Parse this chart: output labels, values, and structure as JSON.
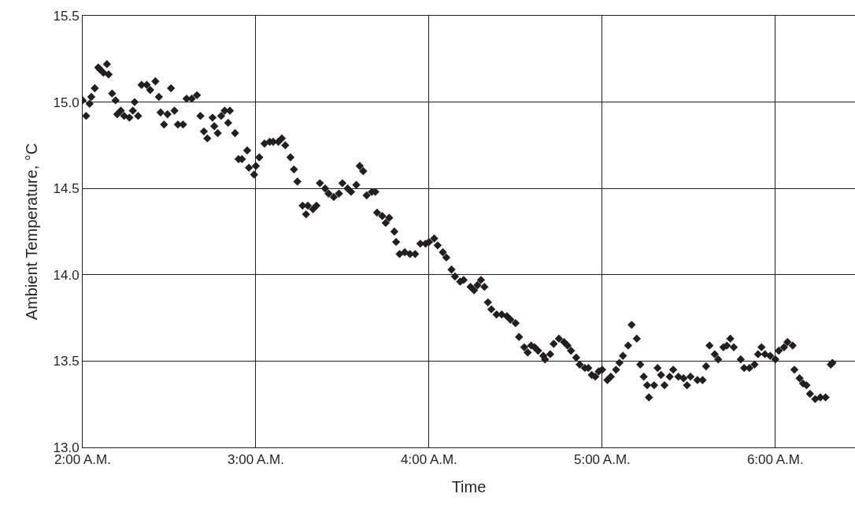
{
  "chart_data": {
    "type": "scatter",
    "xlabel": "Time",
    "ylabel": "Ambient Temperature, °C",
    "x": [
      2.0,
      2.02,
      2.04,
      2.05,
      2.07,
      2.09,
      2.1,
      2.12,
      2.14,
      2.15,
      2.17,
      2.19,
      2.2,
      2.22,
      2.24,
      2.27,
      2.29,
      2.3,
      2.32,
      2.34,
      2.37,
      2.39,
      2.42,
      2.44,
      2.45,
      2.47,
      2.49,
      2.51,
      2.53,
      2.55,
      2.58,
      2.6,
      2.63,
      2.66,
      2.68,
      2.7,
      2.72,
      2.75,
      2.76,
      2.78,
      2.8,
      2.82,
      2.84,
      2.85,
      2.88,
      2.9,
      2.92,
      2.95,
      2.96,
      2.99,
      3.0,
      3.02,
      3.05,
      3.08,
      3.1,
      3.13,
      3.15,
      3.17,
      3.2,
      3.22,
      3.24,
      3.27,
      3.29,
      3.3,
      3.33,
      3.35,
      3.37,
      3.4,
      3.42,
      3.45,
      3.48,
      3.5,
      3.53,
      3.55,
      3.58,
      3.6,
      3.62,
      3.64,
      3.67,
      3.69,
      3.7,
      3.73,
      3.75,
      3.77,
      3.8,
      3.81,
      3.83,
      3.86,
      3.89,
      3.92,
      3.95,
      3.98,
      4.0,
      4.03,
      4.05,
      4.08,
      4.1,
      4.13,
      4.15,
      4.18,
      4.2,
      4.24,
      4.26,
      4.28,
      4.3,
      4.32,
      4.34,
      4.36,
      4.39,
      4.42,
      4.45,
      4.47,
      4.5,
      4.52,
      4.55,
      4.57,
      4.59,
      4.61,
      4.63,
      4.66,
      4.67,
      4.7,
      4.72,
      4.75,
      4.78,
      4.8,
      4.82,
      4.85,
      4.87,
      4.9,
      4.92,
      4.94,
      4.96,
      4.98,
      5.0,
      5.03,
      5.05,
      5.08,
      5.1,
      5.12,
      5.15,
      5.17,
      5.2,
      5.22,
      5.24,
      5.26,
      5.27,
      5.3,
      5.32,
      5.34,
      5.36,
      5.39,
      5.41,
      5.44,
      5.47,
      5.49,
      5.51,
      5.55,
      5.58,
      5.6,
      5.62,
      5.65,
      5.67,
      5.7,
      5.72,
      5.74,
      5.76,
      5.8,
      5.82,
      5.85,
      5.88,
      5.9,
      5.92,
      5.94,
      5.97,
      6.0,
      6.02,
      6.05,
      6.07,
      6.1,
      6.11,
      6.14,
      6.16,
      6.18,
      6.2,
      6.23,
      6.26,
      6.29,
      6.32,
      6.33
    ],
    "values": [
      15.01,
      14.92,
      14.99,
      15.03,
      15.08,
      15.2,
      15.19,
      15.17,
      15.22,
      15.16,
      15.05,
      15.01,
      14.93,
      14.95,
      14.92,
      14.91,
      14.95,
      15.0,
      14.92,
      15.1,
      15.1,
      15.07,
      15.12,
      15.03,
      14.94,
      14.87,
      14.93,
      15.08,
      14.95,
      14.87,
      14.87,
      15.02,
      15.02,
      15.04,
      14.92,
      14.83,
      14.79,
      14.91,
      14.86,
      14.82,
      14.92,
      14.95,
      14.88,
      14.95,
      14.82,
      14.67,
      14.67,
      14.72,
      14.62,
      14.58,
      14.63,
      14.68,
      14.76,
      14.77,
      14.77,
      14.77,
      14.79,
      14.75,
      14.68,
      14.61,
      14.54,
      14.4,
      14.35,
      14.4,
      14.38,
      14.4,
      14.53,
      14.5,
      14.47,
      14.45,
      14.47,
      14.53,
      14.5,
      14.48,
      14.52,
      14.63,
      14.6,
      14.46,
      14.48,
      14.48,
      14.36,
      14.34,
      14.3,
      14.33,
      14.25,
      14.19,
      14.12,
      14.13,
      14.12,
      14.12,
      14.18,
      14.18,
      14.19,
      14.21,
      14.17,
      14.13,
      14.1,
      14.03,
      13.99,
      13.96,
      13.97,
      13.93,
      13.91,
      13.94,
      13.97,
      13.93,
      13.84,
      13.8,
      13.77,
      13.77,
      13.76,
      13.74,
      13.72,
      13.64,
      13.58,
      13.55,
      13.59,
      13.58,
      13.56,
      13.53,
      13.51,
      13.54,
      13.6,
      13.63,
      13.61,
      13.59,
      13.56,
      13.52,
      13.48,
      13.46,
      13.46,
      13.42,
      13.41,
      13.44,
      13.45,
      13.39,
      13.41,
      13.45,
      13.49,
      13.53,
      13.59,
      13.71,
      13.63,
      13.48,
      13.41,
      13.36,
      13.29,
      13.36,
      13.46,
      13.42,
      13.36,
      13.41,
      13.45,
      13.41,
      13.4,
      13.36,
      13.41,
      13.39,
      13.39,
      13.47,
      13.59,
      13.54,
      13.51,
      13.58,
      13.59,
      13.63,
      13.58,
      13.51,
      13.46,
      13.46,
      13.48,
      13.54,
      13.58,
      13.54,
      13.53,
      13.51,
      13.56,
      13.58,
      13.61,
      13.59,
      13.45,
      13.4,
      13.37,
      13.36,
      13.31,
      13.28,
      13.29,
      13.29,
      13.48,
      13.49
    ],
    "color": "#231f20",
    "marker": "diamond",
    "grid": true,
    "legend": false,
    "xlim": [
      2,
      6.46
    ],
    "xticks": [
      {
        "value": 2,
        "label": "2:00 A.M."
      },
      {
        "value": 3,
        "label": "3:00 A.M."
      },
      {
        "value": 4,
        "label": "4:00 A.M."
      },
      {
        "value": 5,
        "label": "5:00 A.M."
      },
      {
        "value": 6,
        "label": "6:00 A.M."
      }
    ],
    "ylim": [
      13,
      15.5
    ],
    "yticks": [
      {
        "value": 13,
        "label": "13.0"
      },
      13.5,
      {
        "value": 14,
        "label": "14.0"
      },
      14.5,
      {
        "value": 15,
        "label": "15.0"
      },
      15.5
    ]
  }
}
